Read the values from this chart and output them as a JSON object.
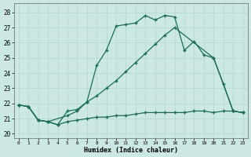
{
  "xlabel": "Humidex (Indice chaleur)",
  "xlim": [
    -0.5,
    23.5
  ],
  "ylim": [
    19.7,
    28.6
  ],
  "yticks": [
    20,
    21,
    22,
    23,
    24,
    25,
    26,
    27,
    28
  ],
  "xticks": [
    0,
    1,
    2,
    3,
    4,
    5,
    6,
    7,
    8,
    9,
    10,
    11,
    12,
    13,
    14,
    15,
    16,
    17,
    18,
    19,
    20,
    21,
    22,
    23
  ],
  "bg_color": "#cce8e4",
  "grid_color": "#b8d8d4",
  "line_color": "#1a6b5a",
  "line1_x": [
    0,
    1,
    2,
    3,
    4,
    5,
    6,
    7,
    8,
    9,
    10,
    11,
    12,
    13,
    14,
    15,
    16,
    17,
    18,
    19,
    20,
    21,
    22,
    23
  ],
  "line1_y": [
    21.9,
    21.8,
    20.9,
    20.8,
    20.6,
    21.5,
    21.6,
    22.1,
    24.5,
    25.5,
    27.1,
    27.2,
    27.3,
    27.8,
    27.5,
    27.8,
    27.7,
    25.5,
    26.1,
    25.2,
    25.0,
    23.3,
    21.5,
    21.4
  ],
  "line2_x": [
    0,
    1,
    2,
    3,
    5,
    6,
    7,
    8,
    9,
    10,
    11,
    12,
    13,
    14,
    15,
    16,
    20,
    22,
    23
  ],
  "line2_y": [
    21.9,
    21.8,
    20.9,
    20.8,
    21.2,
    21.5,
    22.1,
    22.5,
    23.0,
    23.5,
    24.1,
    24.7,
    25.3,
    25.9,
    26.5,
    27.0,
    25.0,
    21.5,
    21.4
  ],
  "line3_x": [
    0,
    1,
    2,
    3,
    4,
    5,
    6,
    7,
    8,
    9,
    10,
    11,
    12,
    13,
    14,
    15,
    16,
    17,
    18,
    19,
    20,
    21,
    22,
    23
  ],
  "line3_y": [
    21.9,
    21.8,
    20.9,
    20.8,
    20.6,
    20.8,
    20.9,
    21.0,
    21.1,
    21.1,
    21.2,
    21.2,
    21.3,
    21.4,
    21.4,
    21.4,
    21.4,
    21.4,
    21.5,
    21.5,
    21.4,
    21.5,
    21.5,
    21.4
  ]
}
